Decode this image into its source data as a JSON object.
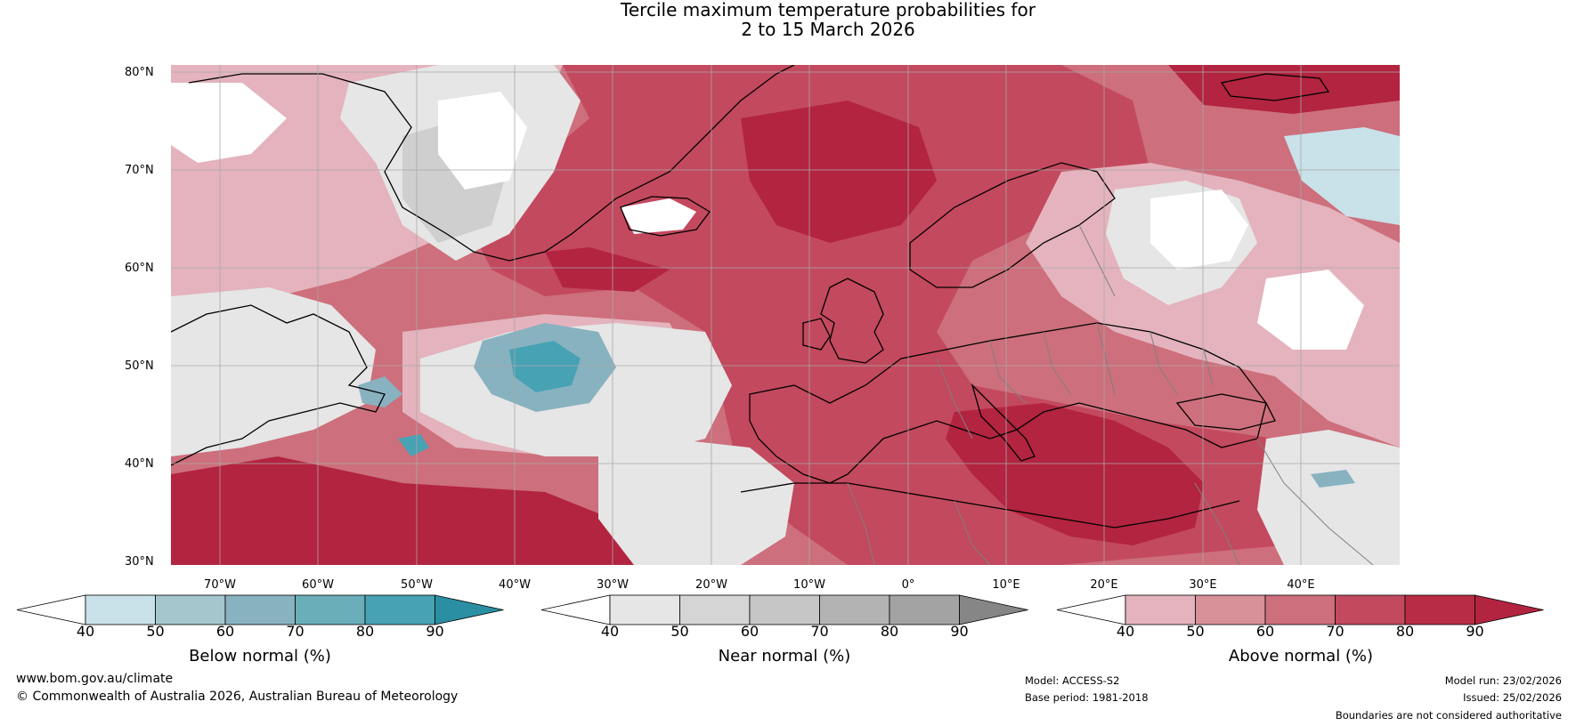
{
  "title": {
    "line1": "Tercile maximum temperature probabilities for",
    "line2": "2 to 15 March 2026"
  },
  "latitude_labels": [
    "80°N",
    "70°N",
    "60°N",
    "50°N",
    "40°N",
    "30°N"
  ],
  "longitude_labels": [
    "70°W",
    "60°W",
    "50°W",
    "40°W",
    "30°W",
    "20°W",
    "10°W",
    "0°",
    "10°E",
    "20°E",
    "30°E",
    "40°E"
  ],
  "colorbars": [
    {
      "label": "Below normal (%)",
      "ticks": [
        "40",
        "50",
        "60",
        "70",
        "80",
        "90"
      ],
      "colors": [
        "#ffffff",
        "#c9e1e8",
        "#a6c6ce",
        "#88b2c0",
        "#69aeb8",
        "#47a2b4",
        "#2b8fa3"
      ]
    },
    {
      "label": "Near normal (%)",
      "ticks": [
        "40",
        "50",
        "60",
        "70",
        "80",
        "90"
      ],
      "colors": [
        "#ffffff",
        "#e6e6e6",
        "#d5d5d5",
        "#c6c6c6",
        "#b3b3b3",
        "#a3a3a3",
        "#868686"
      ]
    },
    {
      "label": "Above normal (%)",
      "ticks": [
        "40",
        "50",
        "60",
        "70",
        "80",
        "90"
      ],
      "colors": [
        "#ffffff",
        "#e4b3bd",
        "#d89099",
        "#cd6f7c",
        "#c3495e",
        "#b82d45",
        "#b22440"
      ]
    }
  ],
  "footer": {
    "website": "www.bom.gov.au/climate",
    "copyright": "© Commonwealth of Australia 2026, Australian Bureau of Meteorology",
    "model": "Model: ACCESS-S2",
    "base_period": "Base period: 1981-2018",
    "model_run": "Model run: 23/02/2026",
    "issued": "Issued: 25/02/2026",
    "disclaimer": "Boundaries are not considered authoritative"
  },
  "colors": {
    "above_light": "#e4b3bd",
    "above_mid": "#cd6f7c",
    "above_strong": "#c3495e",
    "above_max": "#b22440",
    "near_light": "#e6e6e6",
    "near_mid": "#cfcfcf",
    "below_light": "#c9e1e8",
    "below_mid": "#88b2c0",
    "below_strong": "#47a2b4",
    "coastline": "#000000",
    "border": "#808080",
    "grid": "#a8a8a8"
  }
}
